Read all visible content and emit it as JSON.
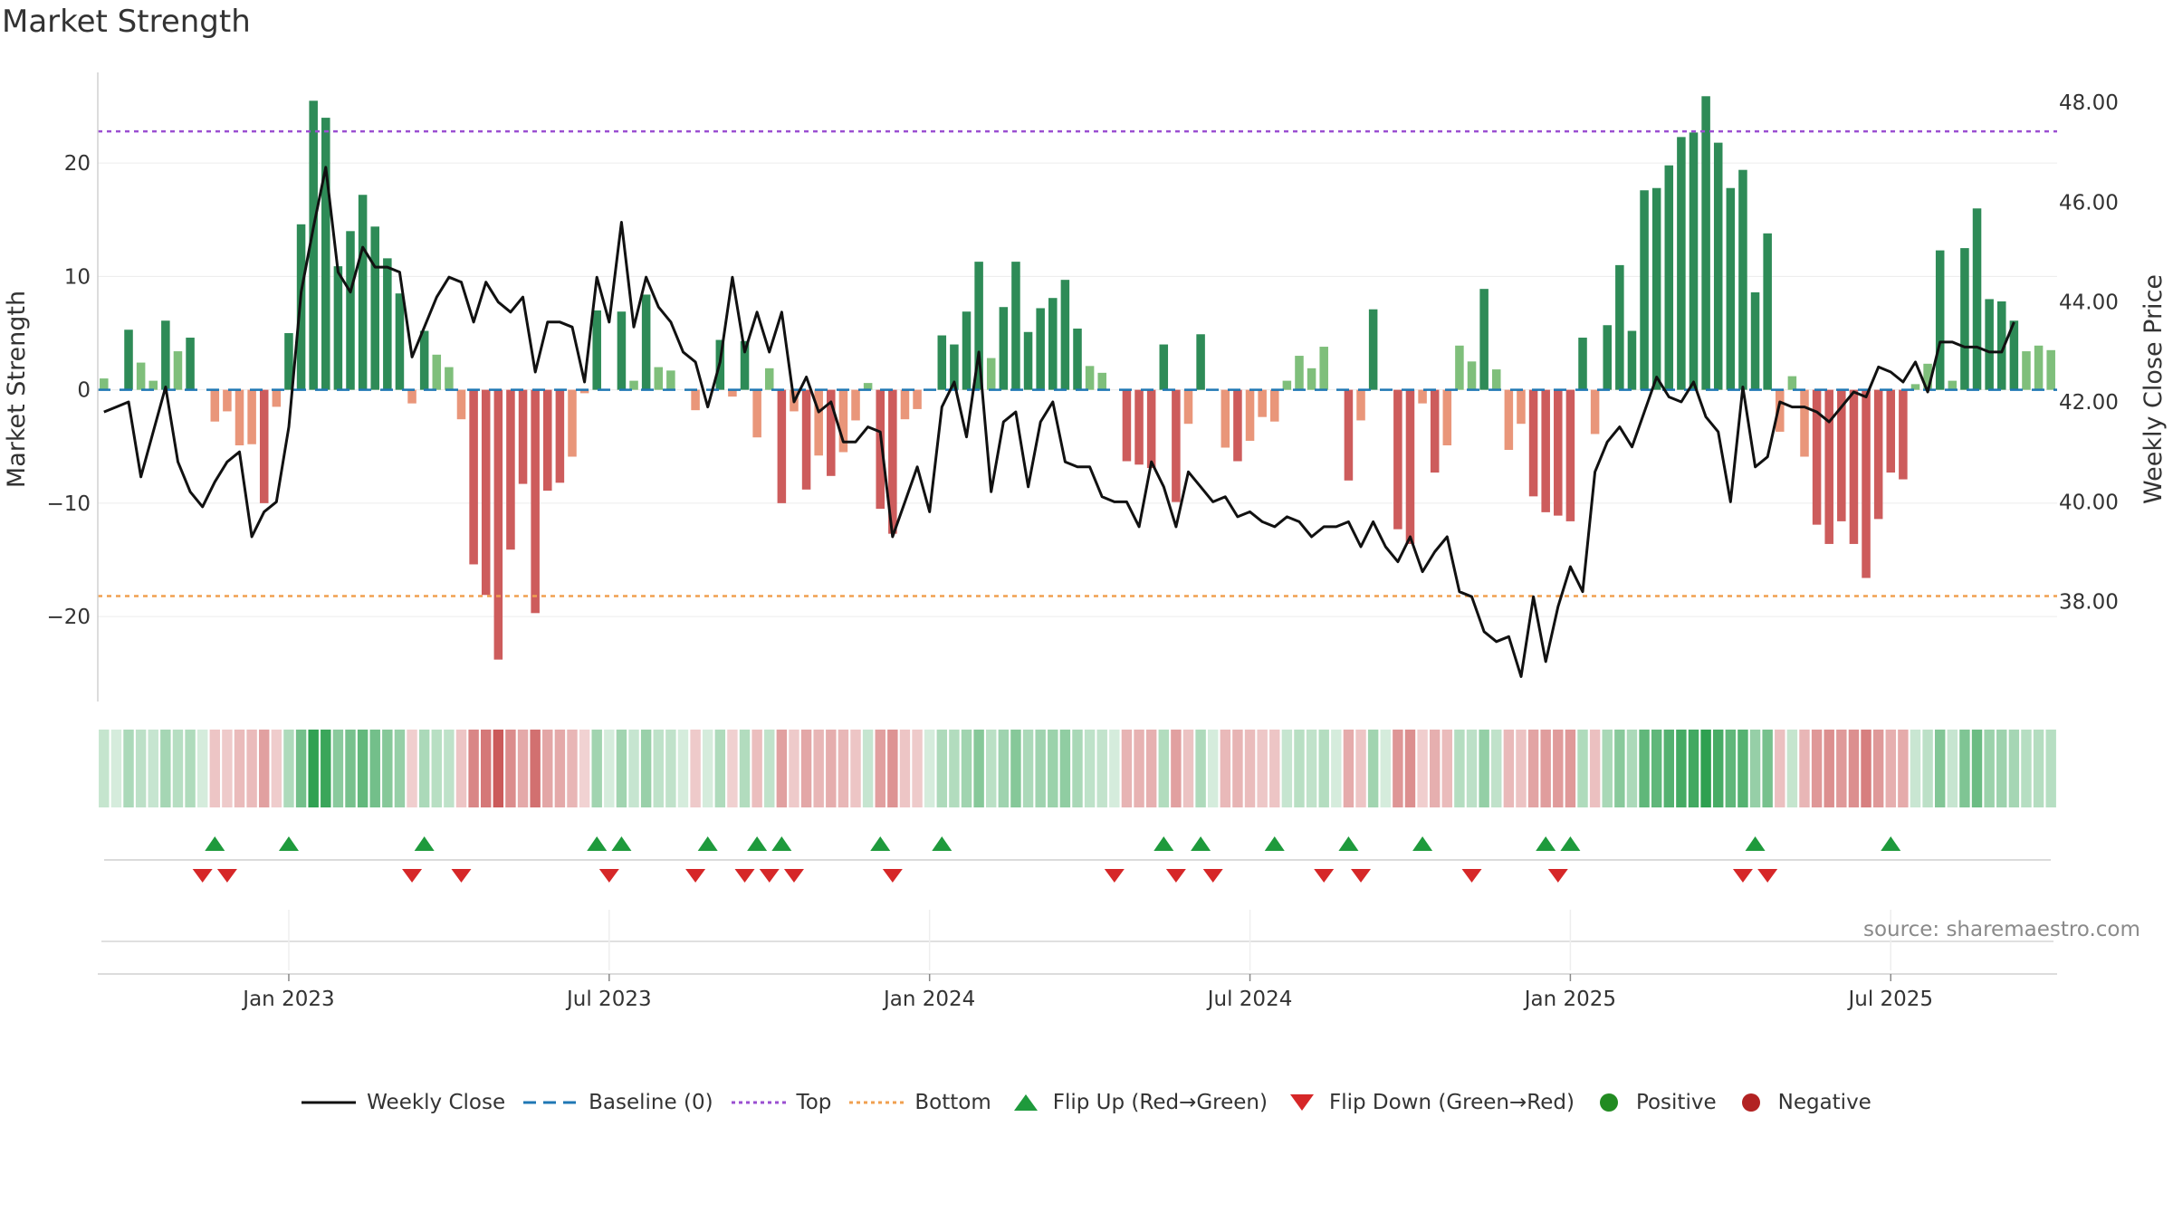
{
  "title": "Market Strength",
  "source": "source: sharemaestro.com",
  "colors": {
    "pos_strong": "#2e8b57",
    "pos_weak": "#7fbf7b",
    "neg_strong": "#cd5c5c",
    "neg_weak": "#e9967a",
    "line": "#111111",
    "baseline": "#1f77b4",
    "top": "#9b4fd1",
    "bottom": "#f0a050",
    "flip_up": "#1e9a3c",
    "flip_down": "#d62728",
    "positive": "#228b22",
    "negative": "#b22222"
  },
  "legend": [
    {
      "key": "line",
      "label": "Weekly Close"
    },
    {
      "key": "baseline",
      "label": "Baseline (0)"
    },
    {
      "key": "top",
      "label": "Top"
    },
    {
      "key": "bottom",
      "label": "Bottom"
    },
    {
      "key": "flip_up",
      "label": "Flip Up (Red→Green)"
    },
    {
      "key": "flip_down",
      "label": "Flip Down (Green→Red)"
    },
    {
      "key": "positive",
      "label": "Positive"
    },
    {
      "key": "negative",
      "label": "Negative"
    }
  ],
  "chart_data": {
    "type": "bar",
    "title": "Market Strength",
    "ylabel": "Market Strength",
    "y2label": "Weekly Close Price",
    "ylim": [
      -27.5,
      28
    ],
    "y2lim": [
      36.0,
      48.6
    ],
    "yticks": [
      20,
      10,
      0,
      -10,
      -20
    ],
    "y2ticks": [
      48.0,
      46.0,
      44.0,
      42.0,
      40.0,
      38.0
    ],
    "y2tick_labels": [
      "48.00",
      "46.00",
      "44.00",
      "42.00",
      "40.00",
      "38.00"
    ],
    "top_threshold": 22.8,
    "bottom_threshold": -18.2,
    "baseline": 0,
    "start": "2022-09-19",
    "x_tick_labels": [
      "Jan 2023",
      "Jul 2023",
      "Jan 2024",
      "Jul 2024",
      "Jan 2025",
      "Jul 2025"
    ],
    "x_tick_index": [
      15,
      41,
      67,
      93,
      119,
      145
    ],
    "strength": [
      1.0,
      0,
      5.3,
      2.4,
      0.8,
      6.1,
      3.4,
      4.6,
      0,
      -2.8,
      -1.9,
      -4.9,
      -4.8,
      -10.0,
      -1.5,
      5.0,
      14.6,
      25.5,
      24.0,
      10.9,
      14.0,
      17.2,
      14.4,
      11.6,
      8.5,
      -1.2,
      5.2,
      3.1,
      2.0,
      -2.6,
      -15.4,
      -18.1,
      -23.8,
      -14.1,
      -8.3,
      -19.7,
      -8.9,
      -8.2,
      -5.9,
      -0.3,
      7.0,
      0,
      6.9,
      0.8,
      8.4,
      2.0,
      1.7,
      0,
      -1.8,
      0,
      4.4,
      -0.6,
      4.3,
      -4.2,
      1.9,
      -10.0,
      -1.9,
      -8.8,
      -5.8,
      -7.6,
      -5.5,
      -2.7,
      0.6,
      -10.5,
      -12.7,
      -2.6,
      -1.7,
      0,
      4.8,
      4.0,
      6.9,
      11.3,
      2.8,
      7.3,
      11.3,
      5.1,
      7.2,
      8.1,
      9.7,
      5.4,
      2.1,
      1.5,
      0,
      -6.3,
      -6.6,
      -6.9,
      4.0,
      -9.9,
      -3.0,
      4.9,
      0,
      -5.1,
      -6.3,
      -4.5,
      -2.4,
      -2.8,
      0.8,
      3.0,
      1.9,
      3.8,
      0,
      -8.0,
      -2.7,
      7.1,
      0,
      -12.3,
      -13.6,
      -1.2,
      -7.3,
      -4.9,
      3.9,
      2.5,
      8.9,
      1.8,
      -5.3,
      -3.0,
      -9.4,
      -10.8,
      -11.1,
      -11.6,
      4.6,
      -3.9,
      5.7,
      11.0,
      5.2,
      17.6,
      17.8,
      19.8,
      22.3,
      22.7,
      25.9,
      21.8,
      17.8,
      19.4,
      8.6,
      13.8,
      -3.7,
      1.2,
      -5.9,
      -11.9,
      -13.6,
      -11.6,
      -13.6,
      -16.6,
      -11.4,
      -7.3,
      -7.9,
      0.5,
      2.3,
      12.3,
      0.8,
      12.5,
      16.0,
      8.0,
      7.8,
      6.1,
      3.4,
      3.9,
      3.5
    ],
    "weekly_close": [
      41.8,
      41.9,
      42.0,
      40.5,
      41.4,
      42.3,
      40.8,
      40.2,
      39.9,
      40.4,
      40.8,
      41.0,
      39.3,
      39.8,
      40.0,
      41.5,
      44.2,
      45.5,
      46.7,
      44.6,
      44.2,
      45.1,
      44.7,
      44.7,
      44.6,
      42.9,
      43.5,
      44.1,
      44.5,
      44.4,
      43.6,
      44.4,
      44.0,
      43.8,
      44.1,
      42.6,
      43.6,
      43.6,
      43.5,
      42.4,
      44.5,
      43.6,
      45.6,
      43.5,
      44.5,
      43.9,
      43.6,
      43.0,
      42.8,
      41.9,
      42.8,
      44.5,
      43.0,
      43.8,
      43.0,
      43.8,
      42.0,
      42.5,
      41.8,
      42.0,
      41.2,
      41.2,
      41.5,
      41.4,
      39.3,
      40.0,
      40.7,
      39.8,
      41.9,
      42.4,
      41.3,
      43.0,
      40.2,
      41.6,
      41.8,
      40.3,
      41.6,
      42.0,
      40.8,
      40.7,
      40.7,
      40.1,
      40.0,
      40.0,
      39.5,
      40.8,
      40.3,
      39.5,
      40.6,
      40.3,
      40.0,
      40.1,
      39.7,
      39.8,
      39.6,
      39.5,
      39.7,
      39.6,
      39.3,
      39.5,
      39.5,
      39.6,
      39.1,
      39.6,
      39.1,
      38.8,
      39.3,
      38.6,
      39.0,
      39.3,
      38.2,
      38.1,
      37.4,
      37.2,
      37.3,
      36.5,
      38.1,
      36.8,
      37.9,
      38.7,
      38.2,
      40.6,
      41.2,
      41.5,
      41.1,
      41.8,
      42.5,
      42.1,
      42.0,
      42.4,
      41.7,
      41.4,
      40.0,
      42.3,
      40.7,
      40.9,
      42.0,
      41.9,
      41.9,
      41.8,
      41.6,
      41.9,
      42.2,
      42.1,
      42.7,
      42.6,
      42.4,
      42.8,
      42.2,
      43.2,
      43.2,
      43.1,
      43.1,
      43.0,
      43.0,
      43.6
    ],
    "flip_up_idx": [
      9,
      15,
      26,
      40,
      42,
      49,
      53,
      55,
      63,
      68,
      86,
      89,
      95,
      101,
      107,
      117,
      119,
      134,
      145
    ],
    "flip_down_idx": [
      8,
      10,
      25,
      29,
      41,
      48,
      52,
      54,
      56,
      64,
      82,
      87,
      90,
      99,
      102,
      111,
      118,
      133,
      135
    ]
  }
}
